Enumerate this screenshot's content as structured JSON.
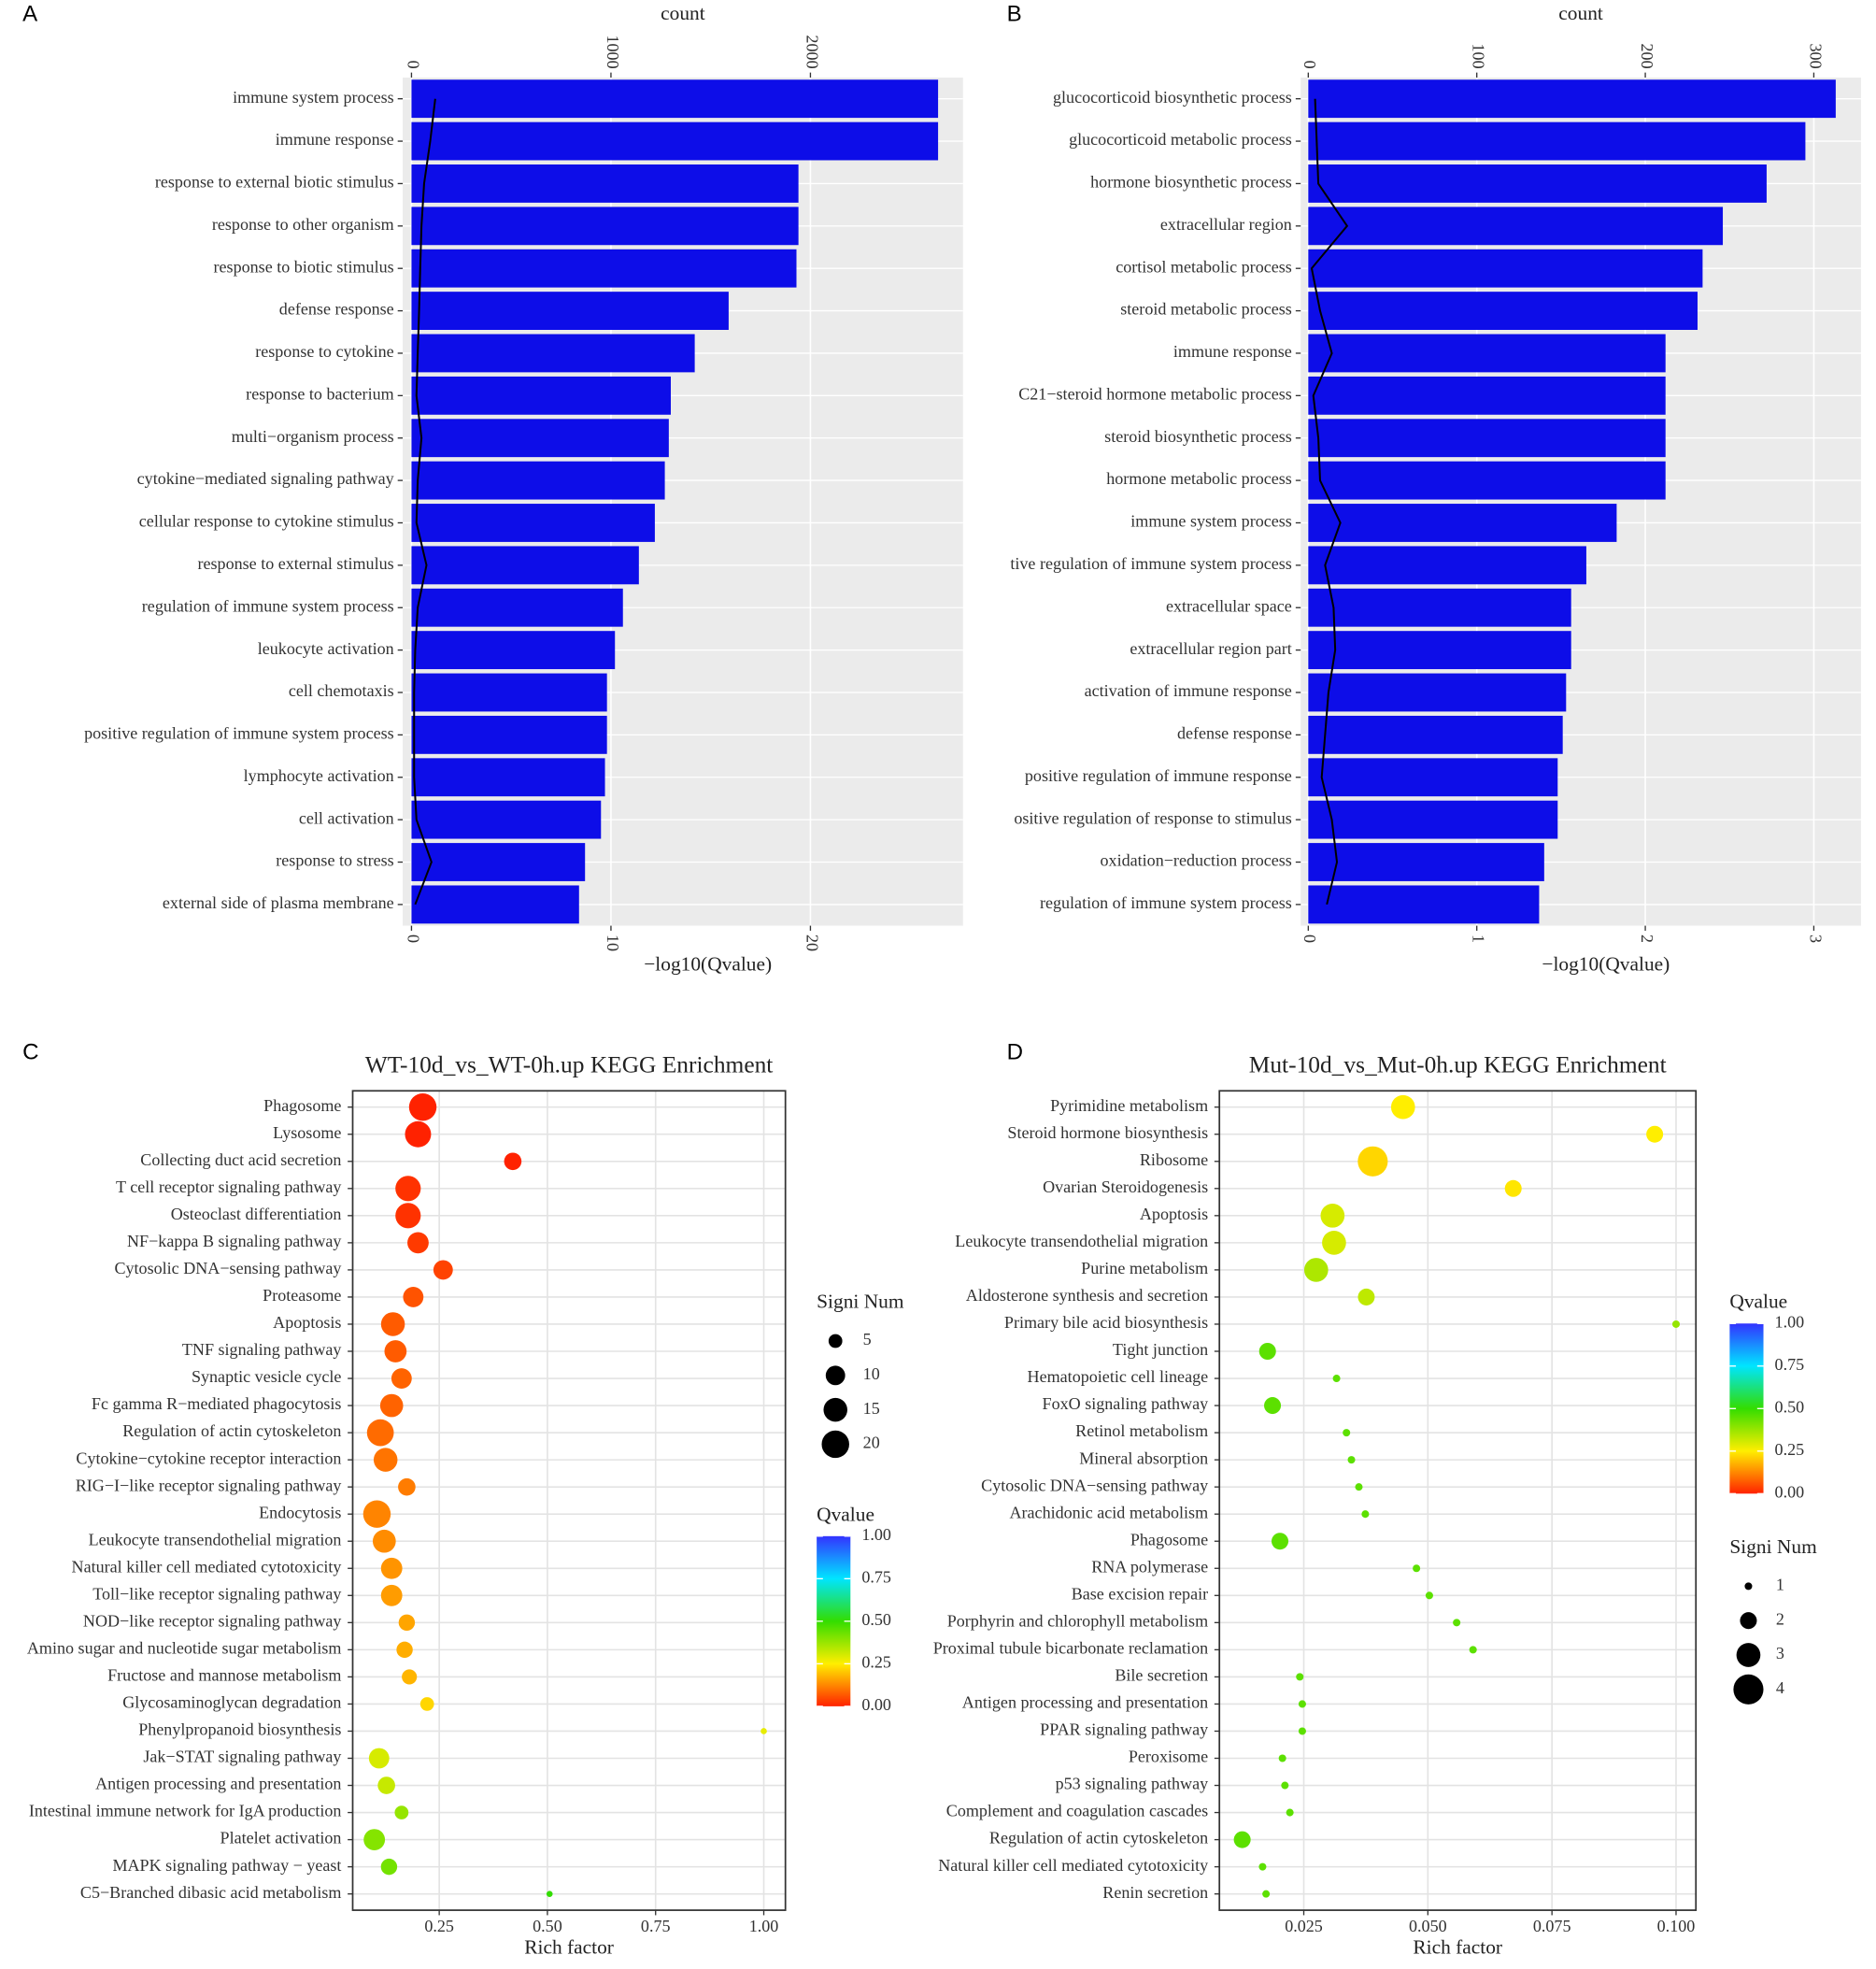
{
  "chart_data": [
    {
      "type": "bar",
      "panel_label": "A",
      "xlabel": "−log10(Qvalue)",
      "x2label": "count",
      "categories": [
        "immune system process",
        "immune response",
        "response to external biotic stimulus",
        "response to other organism",
        "response to biotic stimulus",
        "defense response",
        "response to cytokine",
        "response to bacterium",
        "multi−organism process",
        "cytokine−mediated signaling pathway",
        "cellular response to cytokine stimulus",
        "response to external stimulus",
        "regulation of immune system process",
        "leukocyte activation",
        "cell chemotaxis",
        "positive regulation of immune system process",
        "lymphocyte activation",
        "cell activation",
        "response to stress",
        "external side of plasma membrane"
      ],
      "values": [
        26.4,
        26.4,
        19.4,
        19.4,
        19.3,
        15.9,
        14.2,
        13.0,
        12.9,
        12.7,
        12.2,
        11.4,
        10.6,
        10.2,
        9.8,
        9.8,
        9.7,
        9.5,
        8.7,
        8.4
      ],
      "color": "#0d0de8",
      "line": {
        "axis": "x2",
        "color": "#000000",
        "values": [
          119,
          94,
          63,
          50,
          44,
          38,
          31,
          25,
          50,
          31,
          25,
          75,
          31,
          19,
          13,
          13,
          13,
          25,
          100,
          19
        ]
      },
      "xlim": [
        -0.44,
        27.65
      ],
      "xticks": [
        0,
        10,
        20
      ],
      "x2lim": [
        -44,
        2765
      ],
      "x2ticks": [
        0,
        1000,
        2000
      ],
      "grid": true
    },
    {
      "type": "bar",
      "panel_label": "B",
      "xlabel": "−log10(Qvalue)",
      "x2label": "count",
      "categories": [
        "glucocorticoid biosynthetic process",
        "glucocorticoid metabolic process",
        "hormone biosynthetic process",
        "extracellular region",
        "cortisol metabolic process",
        "steroid metabolic process",
        "immune response",
        "C21−steroid hormone metabolic process",
        "steroid biosynthetic process",
        "hormone metabolic process",
        "immune system process",
        "tive regulation of immune system process",
        "extracellular space",
        "extracellular region part",
        "activation of immune response",
        "defense response",
        "positive regulation of immune response",
        "ositive regulation of response to stimulus",
        "oxidation−reduction process",
        "regulation of immune system process"
      ],
      "values": [
        3.13,
        2.95,
        2.72,
        2.46,
        2.34,
        2.31,
        2.12,
        2.12,
        2.12,
        2.12,
        1.83,
        1.65,
        1.56,
        1.56,
        1.53,
        1.51,
        1.48,
        1.48,
        1.4,
        1.37
      ],
      "color": "#0d0de8",
      "line": {
        "axis": "x2",
        "color": "#000000",
        "values": [
          4,
          5,
          6,
          23,
          2,
          7,
          14,
          3,
          6,
          7,
          19,
          10,
          15,
          16,
          12,
          10,
          8,
          14,
          17,
          11
        ]
      },
      "xlim": [
        -0.045,
        3.28
      ],
      "xticks": [
        0,
        1,
        2,
        3
      ],
      "x2lim": [
        -4.5,
        328
      ],
      "x2ticks": [
        0,
        100,
        200,
        300
      ],
      "grid": true
    },
    {
      "type": "dot",
      "panel_label": "C",
      "title": "WT-10d_vs_WT-0h.up KEGG Enrichment",
      "xlabel": "Rich factor",
      "categories": [
        "Phagosome",
        "Lysosome",
        "Collecting duct acid secretion",
        "T cell receptor signaling pathway",
        "Osteoclast differentiation",
        "NF−kappa B signaling pathway",
        "Cytosolic DNA−sensing pathway",
        "Proteasome",
        "Apoptosis",
        "TNF signaling pathway",
        "Synaptic vesicle cycle",
        "Fc gamma R−mediated phagocytosis",
        "Regulation of actin cytoskeleton",
        "Cytokine−cytokine receptor interaction",
        "RIG−I−like receptor signaling pathway",
        "Endocytosis",
        "Leukocyte transendothelial migration",
        "Natural killer cell mediated cytotoxicity",
        "Toll−like receptor signaling pathway",
        "NOD−like receptor signaling pathway",
        "Amino sugar and nucleotide sugar metabolism",
        "Fructose and mannose metabolism",
        "Glycosaminoglycan degradation",
        "Phenylpropanoid biosynthesis",
        "Jak−STAT signaling pathway",
        "Antigen processing and presentation",
        "Intestinal immune network for IgA production",
        "Platelet activation",
        "MAPK signaling pathway − yeast",
        "C5−Branched dibasic acid metabolism"
      ],
      "x": [
        0.212,
        0.201,
        0.42,
        0.178,
        0.178,
        0.201,
        0.259,
        0.19,
        0.143,
        0.149,
        0.163,
        0.14,
        0.114,
        0.126,
        0.175,
        0.106,
        0.123,
        0.14,
        0.14,
        0.175,
        0.17,
        0.181,
        0.222,
        1.0,
        0.111,
        0.128,
        0.163,
        0.1,
        0.134,
        0.505
      ],
      "size": [
        20,
        18,
        8,
        17,
        17,
        12,
        10,
        11,
        15,
        13,
        11,
        14,
        19,
        15,
        8,
        20,
        14,
        12,
        12,
        7,
        7,
        6,
        5,
        1,
        11,
        8,
        5,
        12,
        7,
        1
      ],
      "color_values": [
        0,
        0,
        0,
        0.02,
        0.02,
        0.03,
        0.04,
        0.06,
        0.07,
        0.07,
        0.08,
        0.08,
        0.09,
        0.1,
        0.11,
        0.12,
        0.13,
        0.14,
        0.15,
        0.16,
        0.17,
        0.18,
        0.22,
        0.28,
        0.3,
        0.32,
        0.38,
        0.4,
        0.42,
        0.5
      ],
      "xlim": [
        0.05,
        1.05
      ],
      "xticks": [
        0.25,
        {
          "value": 0.5,
          "label": "0.50"
        },
        0.75,
        {
          "value": 1,
          "label": "1.00"
        }
      ],
      "grid": true,
      "size_legend": {
        "title": "Signi Num",
        "ticks": [
          5,
          10,
          15,
          20
        ]
      },
      "color_legend": {
        "title": "Qvalue",
        "lim": [
          0,
          1
        ],
        "colors": [
          "#ff2200",
          "#ffee00",
          "#33dd00",
          "#00e5ff",
          "#3333ff"
        ],
        "ticks": [
          {
            "value": 1,
            "label": "1.00"
          },
          0.75,
          {
            "value": 0.5,
            "label": "0.50"
          },
          0.25,
          {
            "value": 0,
            "label": "0.00"
          }
        ]
      }
    },
    {
      "type": "dot",
      "panel_label": "D",
      "title": "Mut-10d_vs_Mut-0h.up KEGG Enrichment",
      "xlabel": "Rich factor",
      "categories": [
        "Pyrimidine metabolism",
        "Steroid hormone biosynthesis",
        "Ribosome",
        "Ovarian Steroidogenesis",
        "Apoptosis",
        "Leukocyte transendothelial migration",
        "Purine metabolism",
        "Aldosterone synthesis and secretion",
        "Primary bile acid biosynthesis",
        "Tight junction",
        "Hematopoietic cell lineage",
        "FoxO signaling pathway",
        "Retinol metabolism",
        "Mineral absorption",
        "Cytosolic DNA−sensing pathway",
        "Arachidonic acid metabolism",
        "Phagosome",
        "RNA polymerase",
        "Base excision repair",
        "Porphyrin and chlorophyll metabolism",
        "Proximal tubule bicarbonate reclamation",
        "Bile secretion",
        "Antigen processing and presentation",
        "PPAR signaling pathway",
        "Peroxisome",
        "p53 signaling pathway",
        "Complement and coagulation cascades",
        "Regulation of actin cytoskeleton",
        "Natural killer cell mediated cytotoxicity",
        "Renin secretion"
      ],
      "x": [
        0.045,
        0.0957,
        0.0389,
        0.0672,
        0.0308,
        0.0311,
        0.0275,
        0.0376,
        0.1,
        0.0177,
        0.0316,
        0.0187,
        0.0336,
        0.0346,
        0.0361,
        0.0374,
        0.0202,
        0.0477,
        0.0503,
        0.0558,
        0.0591,
        0.0242,
        0.0247,
        0.0247,
        0.0207,
        0.0212,
        0.0222,
        0.0126,
        0.0167,
        0.0174
      ],
      "size": [
        3,
        2,
        4,
        2,
        3,
        3,
        3,
        2,
        1,
        2,
        1,
        2,
        1,
        1,
        1,
        1,
        2,
        1,
        1,
        1,
        1,
        1,
        1,
        1,
        1,
        1,
        1,
        2,
        1,
        1
      ],
      "color_values": [
        0.25,
        0.25,
        0.22,
        0.24,
        0.3,
        0.3,
        0.35,
        0.33,
        0.38,
        0.45,
        0.45,
        0.45,
        0.45,
        0.45,
        0.45,
        0.45,
        0.45,
        0.45,
        0.45,
        0.45,
        0.45,
        0.45,
        0.45,
        0.45,
        0.45,
        0.45,
        0.45,
        0.45,
        0.45,
        0.45
      ],
      "xlim": [
        0.008,
        0.104
      ],
      "xticks": [
        0.025,
        {
          "value": 0.05,
          "label": "0.050"
        },
        0.075,
        {
          "value": 0.1,
          "label": "0.100"
        }
      ],
      "grid": true,
      "size_legend": {
        "title": "Signi Num",
        "ticks": [
          1,
          2,
          3,
          4
        ]
      },
      "color_legend": {
        "title": "Qvalue",
        "lim": [
          0,
          1
        ],
        "colors": [
          "#ff2200",
          "#ffee00",
          "#33dd00",
          "#00e5ff",
          "#3333ff"
        ],
        "ticks": [
          {
            "value": 1,
            "label": "1.00"
          },
          0.75,
          {
            "value": 0.5,
            "label": "0.50"
          },
          0.25,
          {
            "value": 0,
            "label": "0.00"
          }
        ]
      }
    }
  ]
}
